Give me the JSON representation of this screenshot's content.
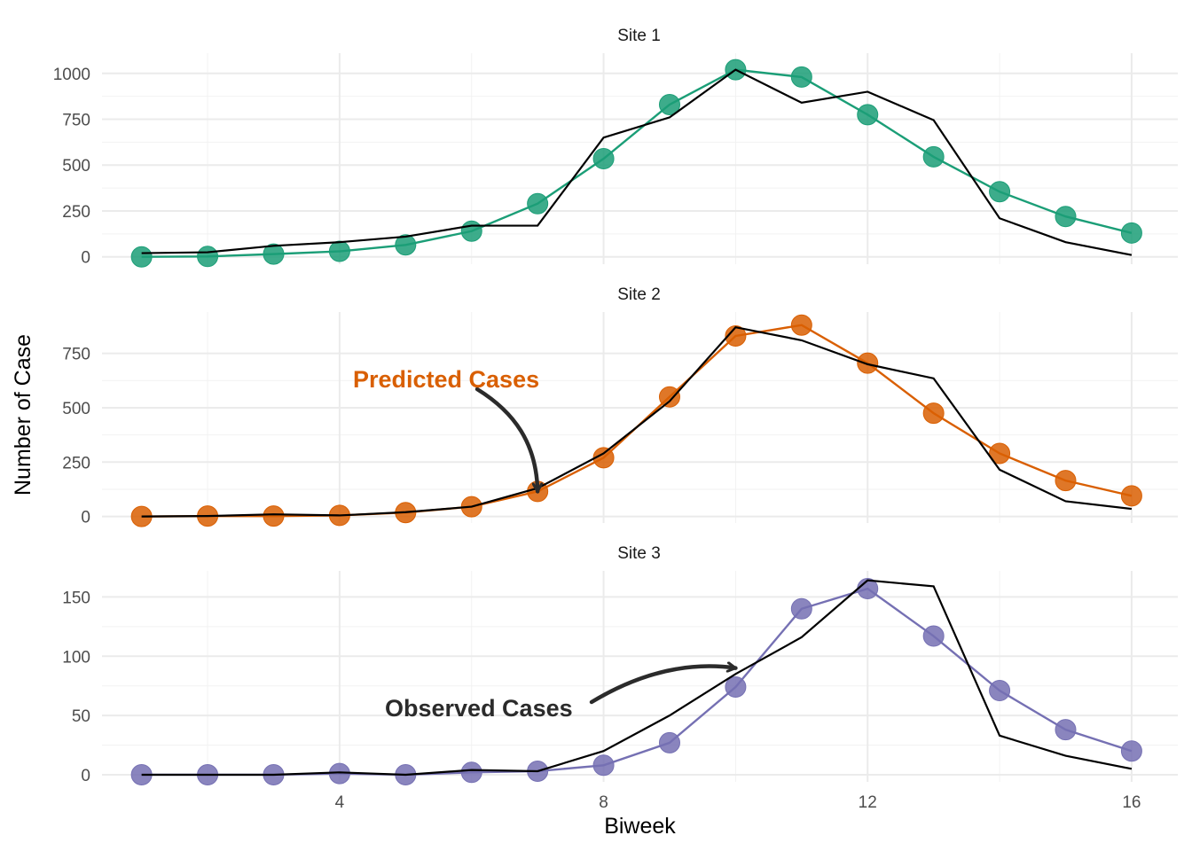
{
  "chart_data": {
    "type": "line",
    "xlabel": "Biweek",
    "ylabel": "Number of Case",
    "x_ticks": [
      4,
      8,
      12,
      16
    ],
    "xlim": [
      0.4,
      16.7
    ],
    "grid": true,
    "panels": [
      {
        "title": "Site 1",
        "ylim": [
          -40,
          1110
        ],
        "y_ticks": [
          0,
          250,
          500,
          750,
          1000
        ],
        "color": "#1b9e77",
        "series": [
          {
            "name": "",
            "role": "observed",
            "x": [
              1,
              2,
              3,
              4,
              5,
              6,
              7,
              8,
              9,
              10,
              11,
              12,
              13,
              14,
              15,
              16
            ],
            "values": [
              20,
              25,
              60,
              80,
              110,
              170,
              170,
              650,
              760,
              1020,
              840,
              900,
              745,
              210,
              80,
              10
            ]
          },
          {
            "name": "",
            "role": "predicted",
            "x": [
              1,
              2,
              3,
              4,
              5,
              6,
              7,
              8,
              9,
              10,
              11,
              12,
              13,
              14,
              15,
              16
            ],
            "values": [
              0,
              2,
              15,
              30,
              65,
              140,
              290,
              535,
              830,
              1020,
              980,
              775,
              545,
              355,
              220,
              130
            ]
          }
        ]
      },
      {
        "title": "Site 2",
        "ylim": [
          -30,
          940
        ],
        "y_ticks": [
          0,
          250,
          500,
          750
        ],
        "color": "#d95f02",
        "series": [
          {
            "name": "",
            "role": "observed",
            "x": [
              1,
              2,
              3,
              4,
              5,
              6,
              7,
              8,
              9,
              10,
              11,
              12,
              13,
              14,
              15,
              16
            ],
            "values": [
              0,
              2,
              10,
              5,
              20,
              45,
              130,
              290,
              530,
              870,
              810,
              700,
              635,
              215,
              70,
              35
            ]
          },
          {
            "name": "",
            "role": "predicted",
            "x": [
              1,
              2,
              3,
              4,
              5,
              6,
              7,
              8,
              9,
              10,
              11,
              12,
              13,
              14,
              15,
              16
            ],
            "values": [
              0,
              2,
              2,
              5,
              18,
              45,
              115,
              270,
              550,
              830,
              880,
              705,
              475,
              290,
              165,
              95
            ]
          }
        ]
      },
      {
        "title": "Site 3",
        "ylim": [
          -6,
          172
        ],
        "y_ticks": [
          0,
          50,
          100,
          150
        ],
        "color": "#7570b3",
        "series": [
          {
            "name": "",
            "role": "observed",
            "x": [
              1,
              2,
              3,
              4,
              5,
              6,
              7,
              8,
              9,
              10,
              11,
              12,
              13,
              14,
              15,
              16
            ],
            "values": [
              0,
              0,
              0,
              2,
              0,
              4,
              3,
              20,
              50,
              85,
              116,
              164,
              159,
              33,
              16,
              5
            ]
          },
          {
            "name": "",
            "role": "predicted",
            "x": [
              1,
              2,
              3,
              4,
              5,
              6,
              7,
              8,
              9,
              10,
              11,
              12,
              13,
              14,
              15,
              16
            ],
            "values": [
              0,
              0,
              0,
              1,
              0,
              2,
              3,
              8,
              27,
              74,
              140,
              157,
              117,
              71,
              38,
              20
            ]
          }
        ]
      }
    ],
    "annotations": [
      {
        "text": "Predicted Cases",
        "panel": 1,
        "color": "#d95f02",
        "arrow_to": {
          "x": 7,
          "y": 115
        }
      },
      {
        "text": "Observed Cases",
        "panel": 2,
        "color": "#2b2b2b",
        "arrow_to": {
          "x": 10,
          "y": 90
        }
      }
    ]
  }
}
